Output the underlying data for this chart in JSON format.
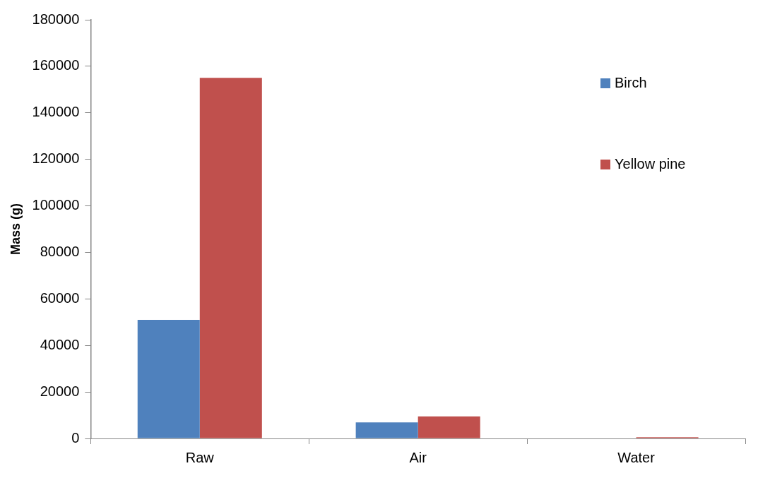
{
  "chart_data": {
    "type": "bar",
    "ylabel": "Mass (g)",
    "categories": [
      "Raw",
      "Air",
      "Water"
    ],
    "series": [
      {
        "name": "Birch",
        "color": "#4f81bd",
        "values": [
          51000,
          6900,
          0
        ]
      },
      {
        "name": "Yellow pine",
        "color": "#c0504d",
        "values": [
          155000,
          9500,
          500
        ]
      }
    ],
    "ylim": [
      0,
      180000
    ],
    "yticks": [
      0,
      20000,
      40000,
      60000,
      80000,
      100000,
      120000,
      140000,
      160000,
      180000
    ],
    "grid": false,
    "legend": "top right"
  }
}
